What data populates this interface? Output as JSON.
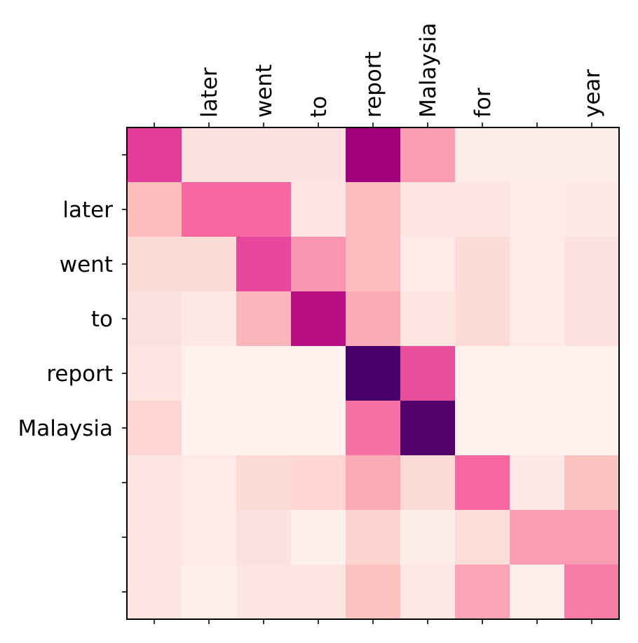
{
  "chart_data": {
    "type": "heatmap",
    "title": "",
    "xlabel": "",
    "ylabel": "",
    "x_labels": [
      "",
      "later",
      "went",
      "to",
      "report",
      "Malaysia",
      "for",
      "",
      "year"
    ],
    "y_labels": [
      "",
      "later",
      "went",
      "to",
      "report",
      "Malaysia",
      "",
      "",
      ""
    ],
    "value_range": [
      0,
      1
    ],
    "colormap": "RdPu",
    "grid": false,
    "values": [
      [
        0.6,
        0.12,
        0.12,
        0.11,
        0.78,
        0.38,
        0.06,
        0.06,
        0.06
      ],
      [
        0.27,
        0.5,
        0.5,
        0.1,
        0.28,
        0.1,
        0.1,
        0.07,
        0.08
      ],
      [
        0.15,
        0.15,
        0.58,
        0.4,
        0.28,
        0.07,
        0.15,
        0.07,
        0.12
      ],
      [
        0.12,
        0.08,
        0.3,
        0.72,
        0.34,
        0.1,
        0.15,
        0.07,
        0.12
      ],
      [
        0.1,
        0.03,
        0.03,
        0.03,
        1.0,
        0.56,
        0.03,
        0.03,
        0.03
      ],
      [
        0.17,
        0.03,
        0.03,
        0.03,
        0.48,
        0.98,
        0.03,
        0.03,
        0.03
      ],
      [
        0.1,
        0.07,
        0.15,
        0.17,
        0.34,
        0.15,
        0.5,
        0.08,
        0.26
      ],
      [
        0.1,
        0.07,
        0.12,
        0.04,
        0.18,
        0.06,
        0.14,
        0.38,
        0.38
      ],
      [
        0.1,
        0.05,
        0.1,
        0.1,
        0.26,
        0.08,
        0.36,
        0.05,
        0.46
      ]
    ]
  }
}
